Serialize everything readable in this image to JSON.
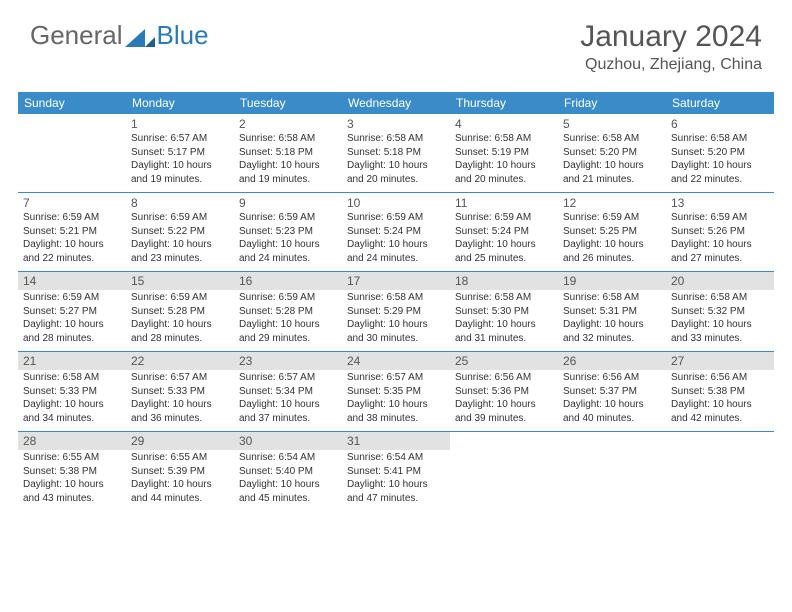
{
  "logo": {
    "part1": "General",
    "part2": "Blue"
  },
  "title": "January 2024",
  "location": "Quzhou, Zhejiang, China",
  "colors": {
    "header_bg": "#3a8cc9",
    "shaded_bg": "#e2e2e2",
    "text": "#333333",
    "title": "#555555"
  },
  "weekdays": [
    "Sunday",
    "Monday",
    "Tuesday",
    "Wednesday",
    "Thursday",
    "Friday",
    "Saturday"
  ],
  "weeks": [
    {
      "shaded": false,
      "days": [
        {
          "num": "",
          "sunrise": "",
          "sunset": "",
          "dl1": "",
          "dl2": ""
        },
        {
          "num": "1",
          "sunrise": "Sunrise: 6:57 AM",
          "sunset": "Sunset: 5:17 PM",
          "dl1": "Daylight: 10 hours",
          "dl2": "and 19 minutes."
        },
        {
          "num": "2",
          "sunrise": "Sunrise: 6:58 AM",
          "sunset": "Sunset: 5:18 PM",
          "dl1": "Daylight: 10 hours",
          "dl2": "and 19 minutes."
        },
        {
          "num": "3",
          "sunrise": "Sunrise: 6:58 AM",
          "sunset": "Sunset: 5:18 PM",
          "dl1": "Daylight: 10 hours",
          "dl2": "and 20 minutes."
        },
        {
          "num": "4",
          "sunrise": "Sunrise: 6:58 AM",
          "sunset": "Sunset: 5:19 PM",
          "dl1": "Daylight: 10 hours",
          "dl2": "and 20 minutes."
        },
        {
          "num": "5",
          "sunrise": "Sunrise: 6:58 AM",
          "sunset": "Sunset: 5:20 PM",
          "dl1": "Daylight: 10 hours",
          "dl2": "and 21 minutes."
        },
        {
          "num": "6",
          "sunrise": "Sunrise: 6:58 AM",
          "sunset": "Sunset: 5:20 PM",
          "dl1": "Daylight: 10 hours",
          "dl2": "and 22 minutes."
        }
      ]
    },
    {
      "shaded": false,
      "days": [
        {
          "num": "7",
          "sunrise": "Sunrise: 6:59 AM",
          "sunset": "Sunset: 5:21 PM",
          "dl1": "Daylight: 10 hours",
          "dl2": "and 22 minutes."
        },
        {
          "num": "8",
          "sunrise": "Sunrise: 6:59 AM",
          "sunset": "Sunset: 5:22 PM",
          "dl1": "Daylight: 10 hours",
          "dl2": "and 23 minutes."
        },
        {
          "num": "9",
          "sunrise": "Sunrise: 6:59 AM",
          "sunset": "Sunset: 5:23 PM",
          "dl1": "Daylight: 10 hours",
          "dl2": "and 24 minutes."
        },
        {
          "num": "10",
          "sunrise": "Sunrise: 6:59 AM",
          "sunset": "Sunset: 5:24 PM",
          "dl1": "Daylight: 10 hours",
          "dl2": "and 24 minutes."
        },
        {
          "num": "11",
          "sunrise": "Sunrise: 6:59 AM",
          "sunset": "Sunset: 5:24 PM",
          "dl1": "Daylight: 10 hours",
          "dl2": "and 25 minutes."
        },
        {
          "num": "12",
          "sunrise": "Sunrise: 6:59 AM",
          "sunset": "Sunset: 5:25 PM",
          "dl1": "Daylight: 10 hours",
          "dl2": "and 26 minutes."
        },
        {
          "num": "13",
          "sunrise": "Sunrise: 6:59 AM",
          "sunset": "Sunset: 5:26 PM",
          "dl1": "Daylight: 10 hours",
          "dl2": "and 27 minutes."
        }
      ]
    },
    {
      "shaded": true,
      "days": [
        {
          "num": "14",
          "sunrise": "Sunrise: 6:59 AM",
          "sunset": "Sunset: 5:27 PM",
          "dl1": "Daylight: 10 hours",
          "dl2": "and 28 minutes."
        },
        {
          "num": "15",
          "sunrise": "Sunrise: 6:59 AM",
          "sunset": "Sunset: 5:28 PM",
          "dl1": "Daylight: 10 hours",
          "dl2": "and 28 minutes."
        },
        {
          "num": "16",
          "sunrise": "Sunrise: 6:59 AM",
          "sunset": "Sunset: 5:28 PM",
          "dl1": "Daylight: 10 hours",
          "dl2": "and 29 minutes."
        },
        {
          "num": "17",
          "sunrise": "Sunrise: 6:58 AM",
          "sunset": "Sunset: 5:29 PM",
          "dl1": "Daylight: 10 hours",
          "dl2": "and 30 minutes."
        },
        {
          "num": "18",
          "sunrise": "Sunrise: 6:58 AM",
          "sunset": "Sunset: 5:30 PM",
          "dl1": "Daylight: 10 hours",
          "dl2": "and 31 minutes."
        },
        {
          "num": "19",
          "sunrise": "Sunrise: 6:58 AM",
          "sunset": "Sunset: 5:31 PM",
          "dl1": "Daylight: 10 hours",
          "dl2": "and 32 minutes."
        },
        {
          "num": "20",
          "sunrise": "Sunrise: 6:58 AM",
          "sunset": "Sunset: 5:32 PM",
          "dl1": "Daylight: 10 hours",
          "dl2": "and 33 minutes."
        }
      ]
    },
    {
      "shaded": true,
      "days": [
        {
          "num": "21",
          "sunrise": "Sunrise: 6:58 AM",
          "sunset": "Sunset: 5:33 PM",
          "dl1": "Daylight: 10 hours",
          "dl2": "and 34 minutes."
        },
        {
          "num": "22",
          "sunrise": "Sunrise: 6:57 AM",
          "sunset": "Sunset: 5:33 PM",
          "dl1": "Daylight: 10 hours",
          "dl2": "and 36 minutes."
        },
        {
          "num": "23",
          "sunrise": "Sunrise: 6:57 AM",
          "sunset": "Sunset: 5:34 PM",
          "dl1": "Daylight: 10 hours",
          "dl2": "and 37 minutes."
        },
        {
          "num": "24",
          "sunrise": "Sunrise: 6:57 AM",
          "sunset": "Sunset: 5:35 PM",
          "dl1": "Daylight: 10 hours",
          "dl2": "and 38 minutes."
        },
        {
          "num": "25",
          "sunrise": "Sunrise: 6:56 AM",
          "sunset": "Sunset: 5:36 PM",
          "dl1": "Daylight: 10 hours",
          "dl2": "and 39 minutes."
        },
        {
          "num": "26",
          "sunrise": "Sunrise: 6:56 AM",
          "sunset": "Sunset: 5:37 PM",
          "dl1": "Daylight: 10 hours",
          "dl2": "and 40 minutes."
        },
        {
          "num": "27",
          "sunrise": "Sunrise: 6:56 AM",
          "sunset": "Sunset: 5:38 PM",
          "dl1": "Daylight: 10 hours",
          "dl2": "and 42 minutes."
        }
      ]
    },
    {
      "shaded": true,
      "days": [
        {
          "num": "28",
          "sunrise": "Sunrise: 6:55 AM",
          "sunset": "Sunset: 5:38 PM",
          "dl1": "Daylight: 10 hours",
          "dl2": "and 43 minutes."
        },
        {
          "num": "29",
          "sunrise": "Sunrise: 6:55 AM",
          "sunset": "Sunset: 5:39 PM",
          "dl1": "Daylight: 10 hours",
          "dl2": "and 44 minutes."
        },
        {
          "num": "30",
          "sunrise": "Sunrise: 6:54 AM",
          "sunset": "Sunset: 5:40 PM",
          "dl1": "Daylight: 10 hours",
          "dl2": "and 45 minutes."
        },
        {
          "num": "31",
          "sunrise": "Sunrise: 6:54 AM",
          "sunset": "Sunset: 5:41 PM",
          "dl1": "Daylight: 10 hours",
          "dl2": "and 47 minutes."
        },
        {
          "num": "",
          "sunrise": "",
          "sunset": "",
          "dl1": "",
          "dl2": ""
        },
        {
          "num": "",
          "sunrise": "",
          "sunset": "",
          "dl1": "",
          "dl2": ""
        },
        {
          "num": "",
          "sunrise": "",
          "sunset": "",
          "dl1": "",
          "dl2": ""
        }
      ]
    }
  ]
}
